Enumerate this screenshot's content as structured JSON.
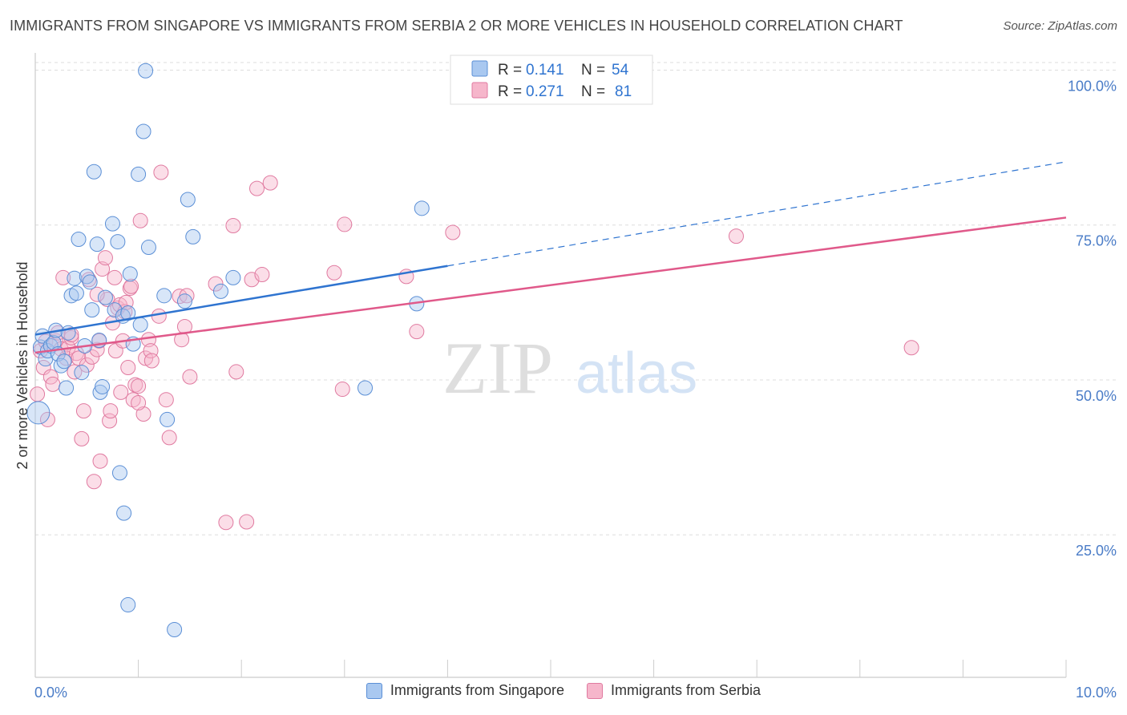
{
  "header": {
    "title": "IMMIGRANTS FROM SINGAPORE VS IMMIGRANTS FROM SERBIA 2 OR MORE VEHICLES IN HOUSEHOLD CORRELATION CHART",
    "source": "Source: ZipAtlas.com"
  },
  "watermark": {
    "zip": "ZIP",
    "atlas": "atlas"
  },
  "colors": {
    "singapore_fill": "#a9c8f0",
    "singapore_stroke": "#5b8fd6",
    "singapore_line": "#2f74d0",
    "serbia_fill": "#f6b6cb",
    "serbia_stroke": "#e07aa0",
    "serbia_line": "#e0598a",
    "tick_label": "#4a7cc7",
    "grid": "#dddddd"
  },
  "legend_top": {
    "rows": [
      {
        "r_label": "R =",
        "r_value": "0.141",
        "n_label": "N =",
        "n_value": "54"
      },
      {
        "r_label": "R =",
        "r_value": "0.271",
        "n_label": "N =",
        "n_value": "81"
      }
    ]
  },
  "legend_bottom": {
    "items": [
      {
        "label": "Immigrants from Singapore"
      },
      {
        "label": "Immigrants from Serbia"
      }
    ]
  },
  "chart_data": {
    "type": "scatter",
    "title": "IMMIGRANTS FROM SINGAPORE VS IMMIGRANTS FROM SERBIA 2 OR MORE VEHICLES IN HOUSEHOLD CORRELATION CHART",
    "xlabel": "",
    "ylabel": "2 or more Vehicles in Household",
    "xlim": [
      0,
      10
    ],
    "ylim": [
      2,
      102
    ],
    "x_tick_labels": {
      "min": "0.0%",
      "max": "10.0%"
    },
    "y_ticks": [
      25,
      50,
      75,
      100
    ],
    "y_tick_labels": [
      "25.0%",
      "50.0%",
      "75.0%",
      "100.0%"
    ],
    "grid": true,
    "series": [
      {
        "name": "Immigrants from Singapore",
        "r": 0.141,
        "n": 54,
        "trend": {
          "x0": 0.0,
          "y0": 57.3,
          "x1": 4.0,
          "y1": 68.4,
          "dashed_to_x": 10.0,
          "dashed_to_y": 85.2
        },
        "points": [
          [
            0.05,
            55.3
          ],
          [
            0.07,
            57.1
          ],
          [
            0.1,
            53.4
          ],
          [
            0.12,
            54.7
          ],
          [
            0.15,
            55.5
          ],
          [
            0.18,
            56.0
          ],
          [
            0.2,
            58.0
          ],
          [
            0.22,
            54.2
          ],
          [
            0.25,
            52.3
          ],
          [
            0.28,
            53.0
          ],
          [
            0.3,
            48.7
          ],
          [
            0.32,
            57.6
          ],
          [
            0.35,
            63.6
          ],
          [
            0.38,
            66.4
          ],
          [
            0.4,
            64.0
          ],
          [
            0.42,
            72.7
          ],
          [
            0.45,
            51.2
          ],
          [
            0.48,
            55.5
          ],
          [
            0.5,
            66.7
          ],
          [
            0.53,
            65.8
          ],
          [
            0.55,
            61.3
          ],
          [
            0.57,
            83.6
          ],
          [
            0.6,
            71.9
          ],
          [
            0.62,
            56.4
          ],
          [
            0.63,
            48.0
          ],
          [
            0.65,
            48.9
          ],
          [
            0.68,
            63.3
          ],
          [
            0.75,
            75.2
          ],
          [
            0.77,
            61.3
          ],
          [
            0.8,
            72.3
          ],
          [
            0.82,
            35.0
          ],
          [
            0.85,
            60.3
          ],
          [
            0.86,
            28.5
          ],
          [
            0.9,
            60.8
          ],
          [
            0.9,
            13.7
          ],
          [
            0.92,
            67.1
          ],
          [
            0.95,
            55.8
          ],
          [
            1.0,
            83.2
          ],
          [
            1.02,
            58.9
          ],
          [
            1.05,
            90.1
          ],
          [
            1.07,
            99.9
          ],
          [
            1.1,
            71.4
          ],
          [
            1.25,
            63.6
          ],
          [
            1.28,
            43.6
          ],
          [
            1.35,
            9.7
          ],
          [
            1.45,
            62.7
          ],
          [
            1.48,
            79.1
          ],
          [
            1.53,
            73.1
          ],
          [
            1.8,
            64.3
          ],
          [
            1.92,
            66.5
          ],
          [
            3.2,
            48.7
          ],
          [
            3.7,
            62.3
          ],
          [
            3.75,
            77.7
          ],
          [
            0.03,
            44.7
          ]
        ]
      },
      {
        "name": "Immigrants from Serbia",
        "r": 0.271,
        "n": 81,
        "trend": {
          "x0": 0.0,
          "y0": 54.4,
          "x1": 10.0,
          "y1": 76.2
        },
        "points": [
          [
            0.05,
            54.7
          ],
          [
            0.08,
            52.0
          ],
          [
            0.1,
            56.2
          ],
          [
            0.12,
            43.6
          ],
          [
            0.15,
            50.5
          ],
          [
            0.17,
            49.3
          ],
          [
            0.2,
            56.3
          ],
          [
            0.22,
            57.6
          ],
          [
            0.25,
            55.0
          ],
          [
            0.27,
            66.5
          ],
          [
            0.3,
            53.5
          ],
          [
            0.32,
            55.2
          ],
          [
            0.35,
            56.8
          ],
          [
            0.38,
            51.3
          ],
          [
            0.4,
            54.3
          ],
          [
            0.42,
            53.5
          ],
          [
            0.45,
            40.5
          ],
          [
            0.47,
            45.0
          ],
          [
            0.5,
            52.4
          ],
          [
            0.52,
            66.2
          ],
          [
            0.55,
            53.7
          ],
          [
            0.57,
            33.6
          ],
          [
            0.6,
            54.9
          ],
          [
            0.62,
            56.3
          ],
          [
            0.63,
            36.9
          ],
          [
            0.65,
            67.9
          ],
          [
            0.68,
            69.7
          ],
          [
            0.7,
            63.0
          ],
          [
            0.72,
            43.4
          ],
          [
            0.73,
            45.0
          ],
          [
            0.75,
            59.2
          ],
          [
            0.77,
            66.5
          ],
          [
            0.78,
            54.7
          ],
          [
            0.8,
            61.6
          ],
          [
            0.82,
            62.1
          ],
          [
            0.83,
            48.0
          ],
          [
            0.85,
            56.3
          ],
          [
            0.87,
            61.0
          ],
          [
            0.88,
            62.5
          ],
          [
            0.9,
            52.0
          ],
          [
            0.92,
            64.8
          ],
          [
            0.93,
            65.1
          ],
          [
            0.95,
            46.8
          ],
          [
            0.97,
            49.2
          ],
          [
            1.0,
            49.0
          ],
          [
            1.02,
            75.7
          ],
          [
            1.05,
            44.5
          ],
          [
            1.07,
            53.5
          ],
          [
            1.1,
            56.5
          ],
          [
            1.12,
            54.7
          ],
          [
            1.13,
            53.1
          ],
          [
            1.2,
            60.3
          ],
          [
            1.22,
            83.5
          ],
          [
            1.27,
            46.8
          ],
          [
            1.3,
            40.7
          ],
          [
            1.4,
            63.5
          ],
          [
            1.42,
            56.5
          ],
          [
            1.45,
            58.6
          ],
          [
            1.47,
            63.6
          ],
          [
            1.5,
            50.5
          ],
          [
            1.75,
            65.5
          ],
          [
            1.85,
            27.0
          ],
          [
            1.92,
            74.9
          ],
          [
            1.95,
            51.3
          ],
          [
            2.05,
            27.1
          ],
          [
            2.1,
            66.2
          ],
          [
            2.15,
            80.9
          ],
          [
            2.2,
            67.0
          ],
          [
            2.28,
            81.8
          ],
          [
            2.9,
            67.3
          ],
          [
            2.98,
            48.5
          ],
          [
            3.0,
            75.1
          ],
          [
            3.6,
            66.7
          ],
          [
            3.7,
            57.8
          ],
          [
            4.05,
            73.8
          ],
          [
            6.8,
            73.2
          ],
          [
            8.5,
            55.2
          ],
          [
            0.02,
            47.7
          ],
          [
            0.35,
            57.3
          ],
          [
            0.6,
            63.8
          ],
          [
            1.0,
            46.3
          ]
        ]
      }
    ]
  }
}
